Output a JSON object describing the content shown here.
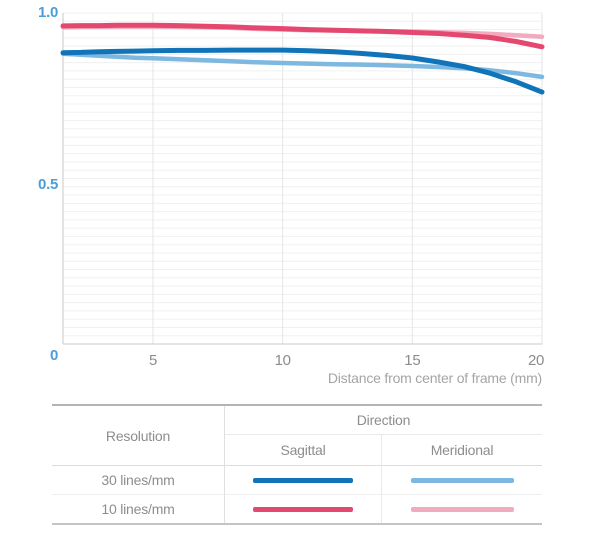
{
  "chart_data": {
    "type": "line",
    "title": "",
    "xlabel": "Distance from center of frame (mm)",
    "ylabel": "",
    "xlim": [
      0,
      20
    ],
    "ylim": [
      0,
      1.0
    ],
    "grid": true,
    "x_ticks": [
      0,
      5,
      10,
      15,
      20
    ],
    "y_ticks": [
      1.0,
      0.5,
      0
    ],
    "h_grid_step": 0.025,
    "legend_position": "table-below",
    "series": [
      {
        "name": "30 lines/mm Sagittal",
        "color": "#1274b8",
        "stroke_width": 5,
        "points": [
          [
            0,
            0.88
          ],
          [
            1,
            0.881
          ],
          [
            2,
            0.883
          ],
          [
            3,
            0.884
          ],
          [
            4,
            0.885
          ],
          [
            5,
            0.886
          ],
          [
            6,
            0.887
          ],
          [
            7,
            0.887
          ],
          [
            8,
            0.888
          ],
          [
            9,
            0.888
          ],
          [
            10,
            0.888
          ],
          [
            11,
            0.886
          ],
          [
            12,
            0.883
          ],
          [
            13,
            0.878
          ],
          [
            14,
            0.872
          ],
          [
            15,
            0.864
          ],
          [
            16,
            0.852
          ],
          [
            17,
            0.838
          ],
          [
            18,
            0.818
          ],
          [
            19,
            0.792
          ],
          [
            20,
            0.761
          ]
        ]
      },
      {
        "name": "30 lines/mm Meridional",
        "color": "#7db8e0",
        "stroke_width": 4.5,
        "points": [
          [
            0,
            0.877
          ],
          [
            1,
            0.874
          ],
          [
            2,
            0.871
          ],
          [
            3,
            0.868
          ],
          [
            4,
            0.865
          ],
          [
            5,
            0.863
          ],
          [
            6,
            0.86
          ],
          [
            7,
            0.857
          ],
          [
            8,
            0.854
          ],
          [
            9,
            0.851
          ],
          [
            10,
            0.849
          ],
          [
            11,
            0.847
          ],
          [
            12,
            0.845
          ],
          [
            13,
            0.844
          ],
          [
            14,
            0.842
          ],
          [
            15,
            0.84
          ],
          [
            16,
            0.837
          ],
          [
            17,
            0.833
          ],
          [
            18,
            0.827
          ],
          [
            19,
            0.818
          ],
          [
            20,
            0.807
          ]
        ]
      },
      {
        "name": "10 lines/mm Sagittal",
        "color": "#e5486f",
        "stroke_width": 5,
        "points": [
          [
            0,
            0.961
          ],
          [
            1,
            0.962
          ],
          [
            2,
            0.962
          ],
          [
            3,
            0.963
          ],
          [
            4,
            0.963
          ],
          [
            5,
            0.963
          ],
          [
            6,
            0.962
          ],
          [
            7,
            0.96
          ],
          [
            8,
            0.958
          ],
          [
            9,
            0.955
          ],
          [
            10,
            0.953
          ],
          [
            11,
            0.95
          ],
          [
            12,
            0.948
          ],
          [
            13,
            0.946
          ],
          [
            14,
            0.944
          ],
          [
            15,
            0.941
          ],
          [
            16,
            0.938
          ],
          [
            17,
            0.933
          ],
          [
            18,
            0.926
          ],
          [
            19,
            0.914
          ],
          [
            20,
            0.898
          ]
        ]
      },
      {
        "name": "10 lines/mm Meridional",
        "color": "#f2aabe",
        "stroke_width": 4.5,
        "points": [
          [
            0,
            0.957
          ],
          [
            1,
            0.958
          ],
          [
            2,
            0.958
          ],
          [
            3,
            0.959
          ],
          [
            4,
            0.959
          ],
          [
            5,
            0.959
          ],
          [
            6,
            0.958
          ],
          [
            7,
            0.957
          ],
          [
            8,
            0.955
          ],
          [
            9,
            0.952
          ],
          [
            10,
            0.95
          ],
          [
            11,
            0.948
          ],
          [
            12,
            0.947
          ],
          [
            13,
            0.946
          ],
          [
            14,
            0.945
          ],
          [
            15,
            0.944
          ],
          [
            16,
            0.942
          ],
          [
            17,
            0.94
          ],
          [
            18,
            0.937
          ],
          [
            19,
            0.933
          ],
          [
            20,
            0.928
          ]
        ]
      }
    ]
  },
  "axis": {
    "y_label_top": "1.0",
    "y_label_mid": "0.5",
    "origin_label": "0",
    "x_axis_title": "Distance from center of frame (mm)"
  },
  "table": {
    "resolution_header": "Resolution",
    "direction_header": "Direction",
    "sagittal_header": "Sagittal",
    "meridional_header": "Meridional",
    "rows": [
      {
        "label": "30 lines/mm",
        "sagittal_color": "#1274b8",
        "meridional_color": "#7db8e0"
      },
      {
        "label": "10 lines/mm",
        "sagittal_color": "#e5486f",
        "meridional_color": "#f2aabe"
      }
    ]
  },
  "colors": {
    "y_axis_label_blue": "#4a9fd8",
    "x_tick_gray": "#8c8c8c",
    "axis_title_gray": "#a5a5a5",
    "table_text_gray": "#8d8d8d",
    "axis_line": "#c8c8c8",
    "gridline_horizontal": "#f0f0f0",
    "gridline_vertical": "#e5e5e5"
  }
}
